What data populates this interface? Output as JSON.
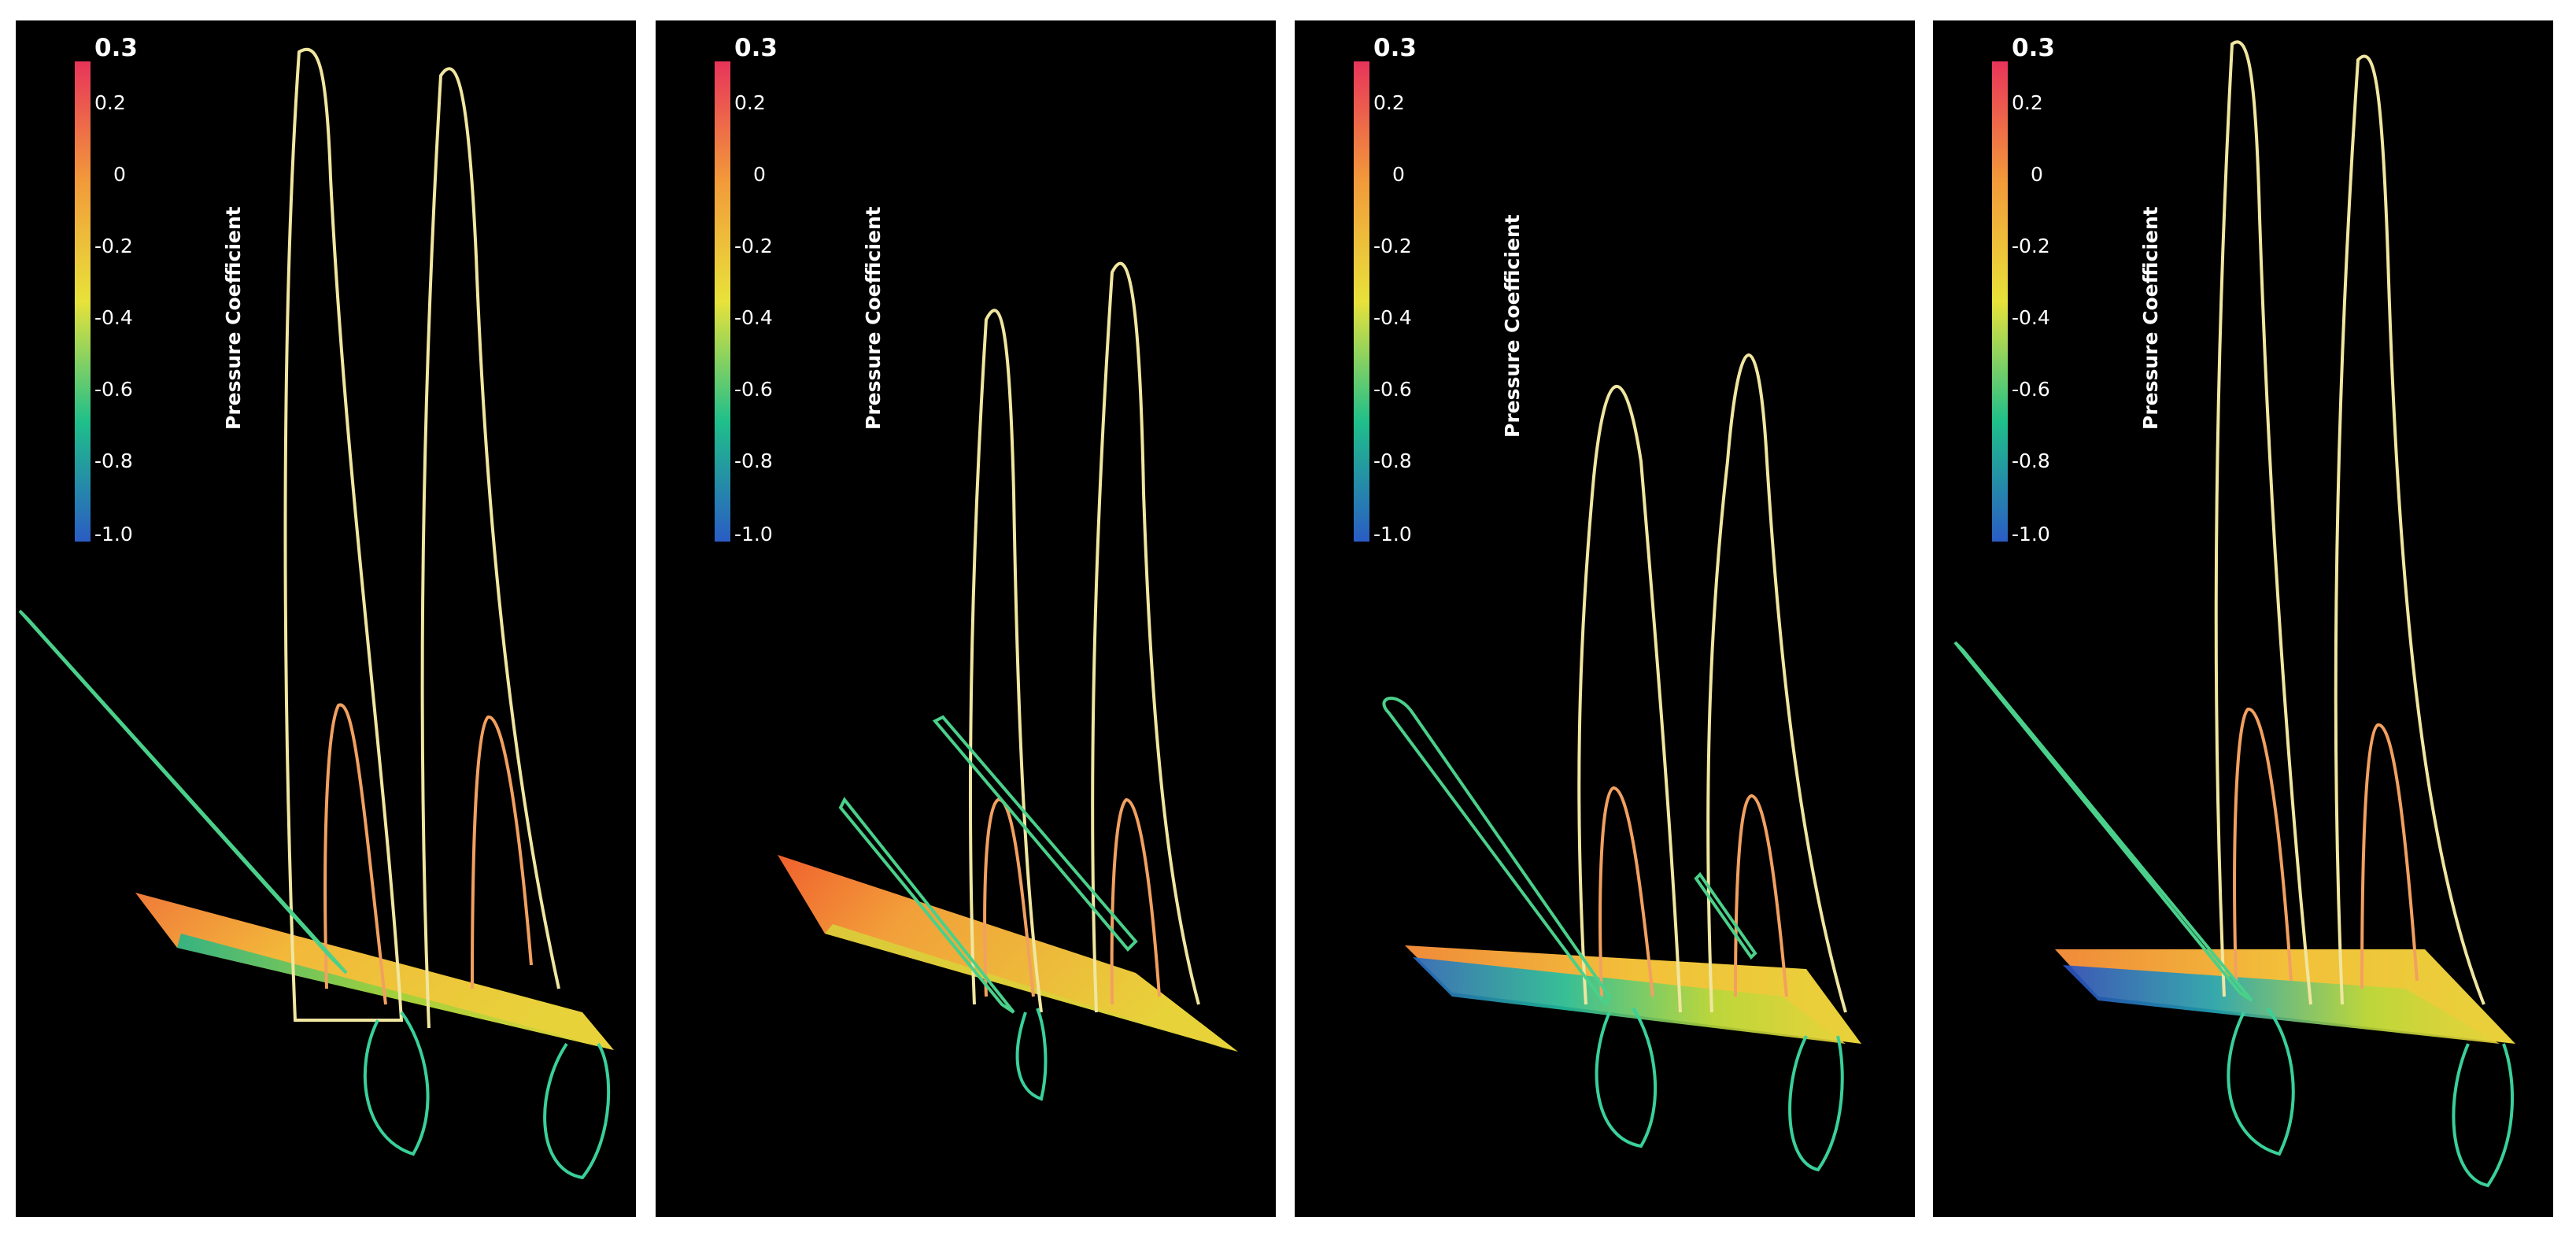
{
  "colorbar": {
    "title": "Pressure Coefficient",
    "tick_labels": [
      "0.3",
      "0.2",
      "0",
      "-0.2",
      "-0.4",
      "-0.6",
      "-0.8",
      "-1.0"
    ],
    "range": [
      -1.0,
      0.3
    ]
  },
  "colors": {
    "background": "#000000",
    "low": "#2a5cc4",
    "mid_low": "#1fbf8a",
    "mid": "#e8e23a",
    "mid_high": "#f29a3a",
    "high": "#e8345a"
  },
  "panels": [
    {
      "id": "panel-1"
    },
    {
      "id": "panel-2"
    },
    {
      "id": "panel-3"
    },
    {
      "id": "panel-4"
    }
  ]
}
